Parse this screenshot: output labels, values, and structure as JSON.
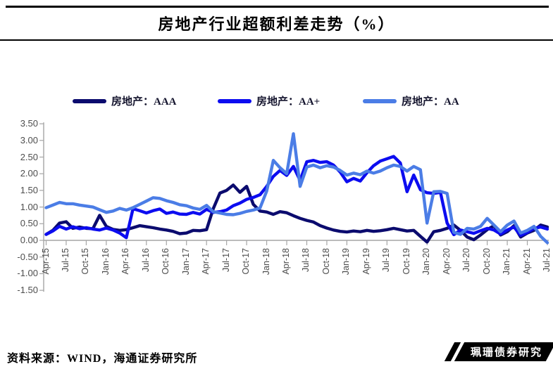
{
  "page": {
    "title": "房地产行业超额利差走势（%）"
  },
  "legend": [
    {
      "label": "房地产：AAA",
      "color": "#0b0b6e"
    },
    {
      "label": "房地产：AA+",
      "color": "#0c0cf0"
    },
    {
      "label": "房地产：AA",
      "color": "#4b7de6"
    }
  ],
  "footer": {
    "source": "资料来源：WIND，海通证券研究所"
  },
  "watermark": {
    "text": "珮珊债券研究"
  },
  "chart_data": {
    "type": "line",
    "title": "房地产行业超额利差走势（%）",
    "x_start": "Apr-15",
    "x_interval": "monthly",
    "n_points": 76,
    "x_tick_labels": [
      "Apr-15",
      "Jul-15",
      "Oct-15",
      "Jan-16",
      "Apr-16",
      "Jul-16",
      "Oct-16",
      "Jan-17",
      "Apr-17",
      "Jul-17",
      "Oct-17",
      "Jan-18",
      "Apr-18",
      "Jul-18",
      "Oct-18",
      "Jan-19",
      "Apr-19",
      "Jul-19",
      "Oct-19",
      "Jan-20",
      "Apr-20",
      "Jul-20",
      "Oct-20",
      "Jan-21",
      "Apr-21",
      "Jul-21"
    ],
    "y_tick_labels": [
      "3.50",
      "3.00",
      "2.50",
      "2.00",
      "1.50",
      "1.00",
      "0.50",
      "0.00",
      "-0.50",
      "-1.00",
      "-1.50"
    ],
    "ylim": [
      -1.5,
      3.5
    ],
    "grid": false,
    "legend_position": "top",
    "series": [
      {
        "name": "房地产：AAA",
        "color": "#0b0b6e",
        "values": [
          0.18,
          0.3,
          0.52,
          0.56,
          0.36,
          0.4,
          0.36,
          0.35,
          0.75,
          0.42,
          0.33,
          0.3,
          0.32,
          0.38,
          0.44,
          0.41,
          0.38,
          0.34,
          0.31,
          0.27,
          0.2,
          0.22,
          0.3,
          0.29,
          0.32,
          0.95,
          1.42,
          1.5,
          1.66,
          1.44,
          1.62,
          1.08,
          0.88,
          0.85,
          0.78,
          0.86,
          0.83,
          0.74,
          0.66,
          0.6,
          0.55,
          0.44,
          0.37,
          0.31,
          0.27,
          0.25,
          0.28,
          0.26,
          0.3,
          0.27,
          0.29,
          0.32,
          0.36,
          0.32,
          0.28,
          0.3,
          0.12,
          -0.05,
          0.26,
          0.3,
          0.36,
          0.46,
          0.3,
          0.1,
          0.02,
          0.16,
          0.32,
          0.44,
          0.16,
          0.26,
          0.44,
          0.1,
          0.22,
          0.3,
          0.46,
          0.4
        ]
      },
      {
        "name": "房地产：AA+",
        "color": "#0c0cf0",
        "values": [
          0.18,
          0.28,
          0.42,
          0.34,
          0.41,
          0.35,
          0.38,
          0.34,
          0.31,
          0.37,
          0.31,
          0.22,
          0.08,
          0.95,
          0.89,
          0.82,
          0.89,
          0.94,
          0.81,
          0.85,
          0.79,
          0.78,
          0.84,
          0.79,
          0.93,
          0.84,
          0.86,
          0.91,
          1.04,
          1.12,
          1.23,
          1.29,
          1.37,
          1.62,
          1.92,
          2.1,
          1.95,
          2.22,
          1.8,
          2.36,
          2.4,
          2.34,
          2.36,
          2.26,
          2.05,
          1.76,
          1.86,
          1.78,
          2.03,
          2.24,
          2.38,
          2.45,
          2.52,
          2.32,
          1.46,
          1.96,
          1.52,
          1.43,
          1.41,
          1.44,
          0.52,
          0.17,
          0.31,
          0.26,
          0.21,
          0.29,
          0.36,
          0.31,
          0.19,
          0.31,
          0.4,
          0.15,
          0.24,
          0.36,
          0.4,
          0.34
        ]
      },
      {
        "name": "房地产：AA",
        "color": "#4b7de6",
        "values": [
          0.98,
          1.06,
          1.14,
          1.1,
          1.1,
          1.06,
          1.03,
          1.0,
          0.92,
          0.84,
          0.88,
          0.96,
          0.91,
          0.98,
          1.08,
          1.18,
          1.28,
          1.26,
          1.19,
          1.14,
          1.07,
          1.04,
          0.97,
          0.93,
          1.05,
          0.86,
          0.82,
          0.78,
          0.77,
          0.81,
          0.87,
          0.91,
          0.97,
          1.48,
          2.4,
          2.18,
          2.0,
          3.2,
          1.62,
          2.2,
          2.26,
          2.18,
          2.24,
          2.2,
          2.1,
          1.96,
          2.02,
          1.97,
          2.08,
          2.02,
          2.08,
          2.18,
          2.26,
          2.22,
          2.08,
          2.22,
          2.12,
          0.52,
          1.46,
          1.47,
          1.41,
          0.24,
          0.18,
          0.36,
          0.34,
          0.42,
          0.66,
          0.46,
          0.26,
          0.46,
          0.58,
          0.22,
          0.3,
          0.42,
          0.12,
          -0.07
        ]
      }
    ]
  }
}
